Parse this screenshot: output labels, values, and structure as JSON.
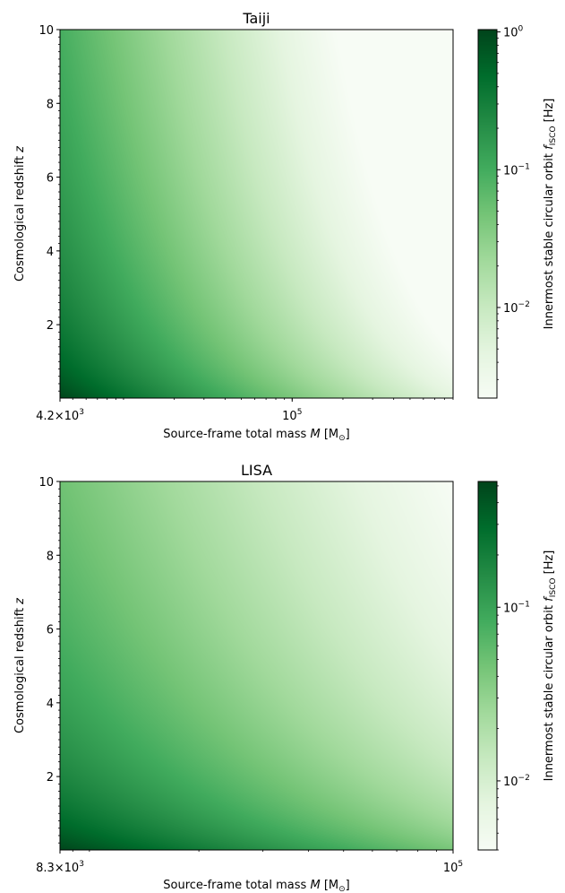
{
  "chart_data": [
    {
      "type": "heatmap",
      "title": "Taiji",
      "xlabel": {
        "pre": "Source-frame total mass ",
        "italic": "M",
        "post": " [M",
        "sub": "⊙",
        "end": "]"
      },
      "ylabel": {
        "pre": "Cosmological redshift ",
        "italic": "z"
      },
      "xscale": "log",
      "xlim": [
        4200,
        900000
      ],
      "ylim": [
        0.01,
        10
      ],
      "xticks": [
        {
          "value": 4200,
          "mant": "4.2",
          "exp": "3"
        },
        {
          "value": 100000,
          "mant": "",
          "exp": "5"
        }
      ],
      "yticks": [
        {
          "value": 2,
          "label": "2"
        },
        {
          "value": 4,
          "label": "4"
        },
        {
          "value": 6,
          "label": "6"
        },
        {
          "value": 8,
          "label": "8"
        },
        {
          "value": 10,
          "label": "10"
        }
      ],
      "colorbar": {
        "label": {
          "pre": "Innermost stable circular orbit ",
          "italic": "f",
          "sub": "ISCO",
          "post": " [Hz]"
        },
        "scale": "log",
        "range": [
          0.0022,
          1.04
        ],
        "ticks": [
          {
            "value": 0.01,
            "exp": "−2"
          },
          {
            "value": 0.1,
            "exp": "−1"
          },
          {
            "value": 1,
            "exp": "0"
          }
        ]
      },
      "colormap": "Greens",
      "function": "f_ISCO = 4400 Hz / (M (1+z))",
      "grid": false
    },
    {
      "type": "heatmap",
      "title": "LISA",
      "xlabel": {
        "pre": "Source-frame total mass ",
        "italic": "M",
        "post": " [M",
        "sub": "⊙",
        "end": "]"
      },
      "ylabel": {
        "pre": "Cosmological redshift ",
        "italic": "z"
      },
      "xscale": "log",
      "xlim": [
        8300,
        100000
      ],
      "ylim": [
        0.01,
        10
      ],
      "xticks": [
        {
          "value": 8300,
          "mant": "8.3",
          "exp": "3"
        },
        {
          "value": 100000,
          "mant": "",
          "exp": "5"
        }
      ],
      "yticks": [
        {
          "value": 2,
          "label": "2"
        },
        {
          "value": 4,
          "label": "4"
        },
        {
          "value": 6,
          "label": "6"
        },
        {
          "value": 8,
          "label": "8"
        },
        {
          "value": 10,
          "label": "10"
        }
      ],
      "colorbar": {
        "label": {
          "pre": "Innermost stable circular orbit ",
          "italic": "f",
          "sub": "ISCO",
          "post": " [Hz]"
        },
        "scale": "log",
        "range": [
          0.004,
          0.53
        ],
        "ticks": [
          {
            "value": 0.01,
            "exp": "−2"
          },
          {
            "value": 0.1,
            "exp": "−1"
          }
        ]
      },
      "colormap": "Greens",
      "function": "f_ISCO = 4400 Hz / (M (1+z))",
      "grid": false
    }
  ]
}
